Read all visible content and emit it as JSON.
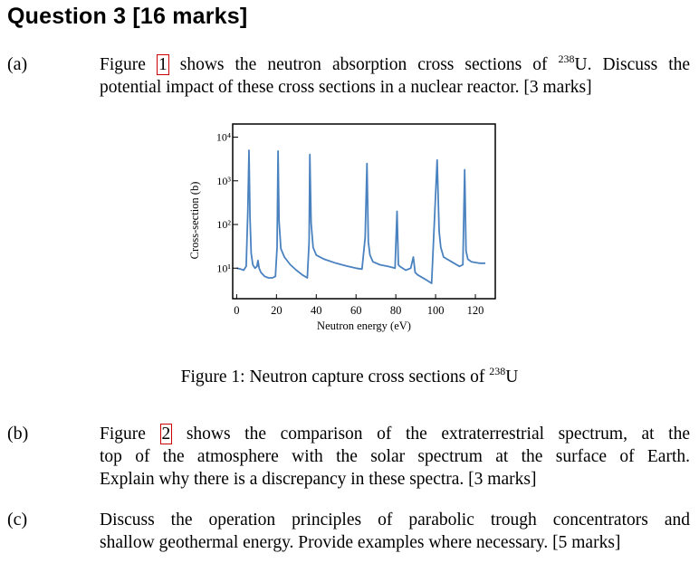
{
  "heading": "Question 3 [16 marks]",
  "part_a": {
    "label": "(a)",
    "line1_pre": "Figure",
    "ref": "1",
    "line1_mid": "shows the neutron absorption cross sections of",
    "isotope_sup": "238",
    "line1_post": "U. Discuss the",
    "line2": "potential impact of these cross sections in a nuclear reactor. [3 marks]"
  },
  "figure": {
    "caption_pre": "Figure 1: Neutron capture cross sections of",
    "caption_sup": "238",
    "caption_post": "U"
  },
  "part_b": {
    "label": "(b)",
    "line1_pre": "Figure",
    "ref": "2",
    "line1_post": "shows the comparison of the extraterrestrial spectrum, at the",
    "line2": "top of the atmosphere with the solar spectrum at the surface of Earth.",
    "line3": "Explain why there is a discrepancy in these spectra. [3 marks]"
  },
  "part_c": {
    "label": "(c)",
    "line1": "Discuss the operation principles of parabolic trough concentrators and",
    "line2": "shallow geothermal energy. Provide examples where necessary. [5 marks]"
  },
  "chart_data": {
    "type": "line",
    "xlabel": "Neutron energy (eV)",
    "ylabel": "Cross-section (b)",
    "xlim": [
      -2,
      130
    ],
    "xticks": [
      0,
      20,
      40,
      60,
      80,
      100,
      120
    ],
    "xtick_labels": [
      "0",
      "20",
      "40",
      "60",
      "80",
      "100",
      "120"
    ],
    "ylog": true,
    "ylim": [
      2,
      20000
    ],
    "yticks": [
      10,
      100,
      1000,
      10000
    ],
    "ytick_labels": [
      "10¹",
      "10²",
      "10³",
      "10⁴"
    ],
    "grid": false,
    "line_color": "#4a82c0",
    "series": [
      {
        "x": [
          0,
          2,
          3.5,
          4.8,
          5.6,
          6.2,
          6.7,
          7.3,
          8.1,
          9.2,
          10.2,
          10.7,
          11.3,
          12.2,
          14,
          16,
          18,
          19.5,
          20.3,
          20.8,
          21.3,
          22.2,
          24,
          27,
          30,
          33,
          35.5,
          36.4,
          36.8,
          37.4,
          38.4,
          40,
          44,
          50,
          56,
          60,
          63,
          64.6,
          65.5,
          66.2,
          67,
          68.5,
          72,
          76,
          79.6,
          80.6,
          81.3,
          82,
          85,
          87.5,
          88.8,
          89.7,
          91,
          95,
          98,
          100.8,
          101.8,
          102.6,
          104,
          108,
          112,
          113.7,
          114.6,
          115.3,
          116.2,
          118,
          122,
          125
        ],
        "y": [
          10,
          9.5,
          9,
          11,
          200,
          5000,
          150,
          22,
          12,
          10,
          11,
          15,
          10,
          8,
          6.5,
          6,
          6,
          6.5,
          30,
          4800,
          120,
          28,
          18,
          12,
          9,
          7,
          6,
          40,
          4000,
          110,
          30,
          20,
          16,
          13,
          11,
          10,
          9.5,
          50,
          2500,
          40,
          20,
          14,
          12,
          11,
          10,
          200,
          12,
          11,
          9,
          10,
          18,
          8,
          7,
          5.5,
          4.5,
          3000,
          70,
          30,
          18,
          14,
          11,
          12,
          1800,
          25,
          16,
          14,
          13,
          13
        ]
      }
    ]
  }
}
